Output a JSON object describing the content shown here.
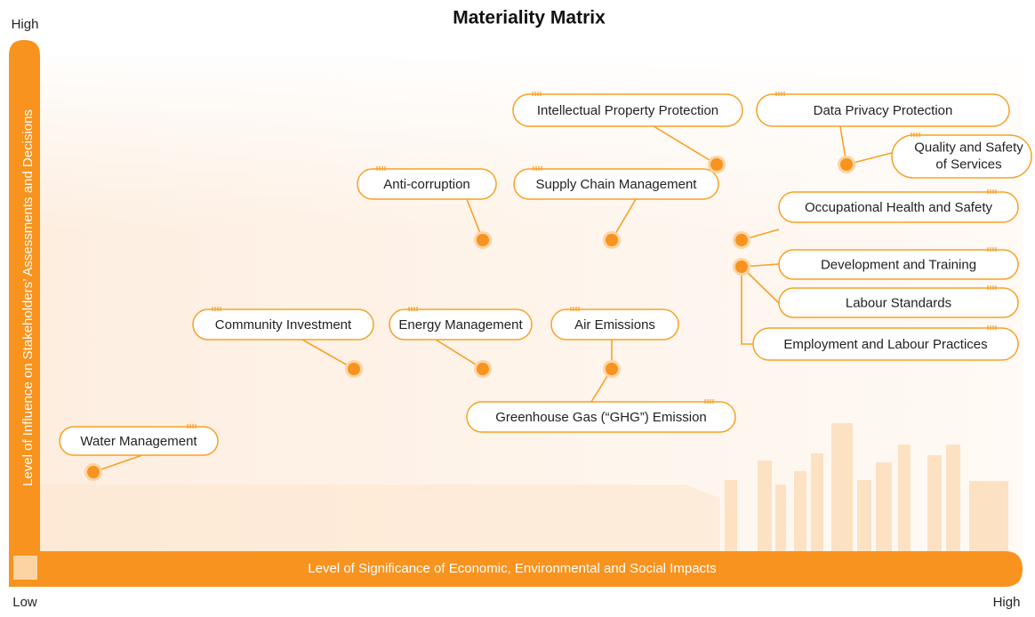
{
  "header": {
    "title": "Materiality Matrix"
  },
  "axes": {
    "y_label": "Level of Influence on Stakeholders’ Assessments and Decisions",
    "x_label": "Level of Significance of Economic, Environmental and Social Impacts",
    "y_high": "High",
    "x_low": "Low",
    "x_high": "High"
  },
  "nodes": [
    {
      "label": "Intellectual Property Protection"
    },
    {
      "label": "Data Privacy Protection"
    },
    {
      "label": [
        "Quality and Safety",
        "of Services"
      ]
    },
    {
      "label": "Anti-corruption"
    },
    {
      "label": "Supply Chain Management"
    },
    {
      "label": "Occupational Health and Safety"
    },
    {
      "label": "Development and Training"
    },
    {
      "label": "Labour Standards"
    },
    {
      "label": "Employment and Labour Practices"
    },
    {
      "label": "Community Investment"
    },
    {
      "label": "Energy Management"
    },
    {
      "label": "Air Emissions"
    },
    {
      "label": "Greenhouse Gas (“GHG”) Emission"
    },
    {
      "label": "Water Management"
    }
  ]
}
